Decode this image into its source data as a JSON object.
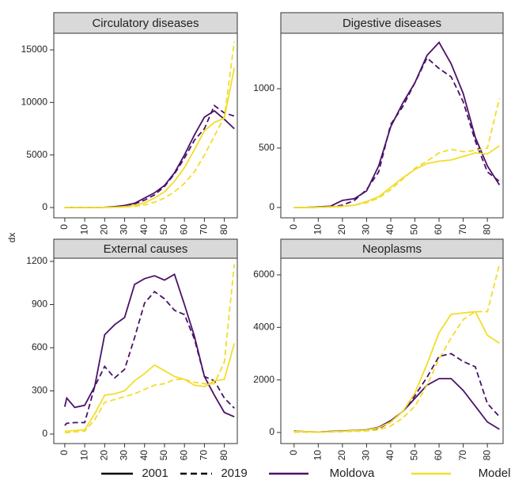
{
  "y_label": "dx",
  "legend": {
    "linetypes": [
      {
        "label": "2001",
        "dash": false
      },
      {
        "label": "2019",
        "dash": true
      }
    ],
    "colors": [
      {
        "label": "Moldova",
        "color": "#4a1269"
      },
      {
        "label": "Model",
        "color": "#f2dd2a"
      }
    ]
  },
  "chart_data": [
    {
      "type": "line",
      "title": "Circulatory diseases",
      "x": [
        0,
        1,
        5,
        10,
        15,
        20,
        25,
        30,
        35,
        40,
        45,
        50,
        55,
        60,
        65,
        70,
        75,
        80,
        85
      ],
      "xlim": [
        -5.5,
        86.5
      ],
      "xticks": [
        0,
        10,
        20,
        30,
        40,
        50,
        60,
        70,
        80
      ],
      "ylim": [
        -980,
        16580
      ],
      "yticks": [
        0,
        5000,
        10000,
        15000
      ],
      "series": [
        {
          "color": "#4a1269",
          "dash": false,
          "values": [
            0,
            0,
            0,
            0,
            0,
            20,
            80,
            200,
            400,
            900,
            1400,
            2100,
            3300,
            5000,
            6900,
            8600,
            9200,
            8400,
            7500
          ]
        },
        {
          "color": "#4a1269",
          "dash": true,
          "values": [
            0,
            0,
            0,
            0,
            0,
            10,
            50,
            150,
            350,
            700,
            1200,
            2000,
            3200,
            4700,
            6400,
            7500,
            9700,
            9000,
            8700
          ]
        },
        {
          "color": "#f2dd2a",
          "dash": false,
          "values": [
            0,
            0,
            0,
            0,
            0,
            10,
            30,
            80,
            200,
            450,
            900,
            1500,
            2500,
            3800,
            5500,
            7300,
            8100,
            8500,
            13300
          ]
        },
        {
          "color": "#f2dd2a",
          "dash": true,
          "values": [
            0,
            0,
            0,
            0,
            0,
            5,
            20,
            50,
            100,
            250,
            500,
            900,
            1500,
            2300,
            3400,
            5000,
            6800,
            8600,
            15800
          ]
        }
      ]
    },
    {
      "type": "line",
      "title": "Digestive diseases",
      "x": [
        0,
        1,
        5,
        10,
        15,
        20,
        25,
        30,
        35,
        40,
        45,
        50,
        55,
        60,
        65,
        70,
        75,
        80,
        85
      ],
      "xlim": [
        -5.5,
        86.5
      ],
      "xticks": [
        0,
        10,
        20,
        30,
        40,
        50,
        60,
        70,
        80
      ],
      "ylim": [
        -87,
        1467
      ],
      "yticks": [
        0,
        500,
        1000
      ],
      "series": [
        {
          "color": "#4a1269",
          "dash": false,
          "values": [
            0,
            0,
            0,
            5,
            10,
            60,
            75,
            140,
            350,
            680,
            880,
            1050,
            1280,
            1390,
            1210,
            960,
            590,
            350,
            190
          ]
        },
        {
          "color": "#4a1269",
          "dash": true,
          "values": [
            0,
            0,
            0,
            2,
            5,
            20,
            60,
            150,
            300,
            700,
            850,
            1050,
            1260,
            1170,
            1100,
            890,
            560,
            300,
            220
          ]
        },
        {
          "color": "#f2dd2a",
          "dash": false,
          "values": [
            0,
            0,
            0,
            2,
            5,
            10,
            20,
            50,
            90,
            170,
            250,
            320,
            370,
            390,
            400,
            430,
            460,
            450,
            520
          ]
        },
        {
          "color": "#f2dd2a",
          "dash": true,
          "values": [
            0,
            0,
            0,
            2,
            4,
            8,
            20,
            40,
            80,
            150,
            240,
            330,
            390,
            460,
            490,
            470,
            480,
            500,
            920
          ]
        }
      ]
    },
    {
      "type": "line",
      "title": "External causes",
      "x": [
        0,
        1,
        5,
        10,
        15,
        20,
        25,
        30,
        35,
        40,
        45,
        50,
        55,
        60,
        65,
        70,
        75,
        80,
        85
      ],
      "xlim": [
        -5.5,
        86.5
      ],
      "xticks": [
        0,
        10,
        20,
        30,
        40,
        50,
        60,
        70,
        80
      ],
      "ylim": [
        -66,
        1222
      ],
      "yticks": [
        0,
        300,
        600,
        900,
        1200
      ],
      "series": [
        {
          "color": "#4a1269",
          "dash": false,
          "values": [
            190,
            250,
            185,
            200,
            330,
            690,
            760,
            810,
            1040,
            1080,
            1100,
            1070,
            1110,
            900,
            680,
            400,
            270,
            150,
            120
          ]
        },
        {
          "color": "#4a1269",
          "dash": true,
          "values": [
            60,
            75,
            80,
            80,
            330,
            470,
            390,
            450,
            670,
            910,
            990,
            940,
            860,
            830,
            660,
            400,
            370,
            250,
            180
          ]
        },
        {
          "color": "#f2dd2a",
          "dash": false,
          "values": [
            20,
            20,
            25,
            30,
            140,
            270,
            280,
            300,
            370,
            420,
            480,
            440,
            400,
            380,
            340,
            330,
            370,
            380,
            630
          ]
        },
        {
          "color": "#f2dd2a",
          "dash": true,
          "values": [
            10,
            10,
            15,
            20,
            100,
            220,
            240,
            260,
            280,
            310,
            340,
            350,
            380,
            380,
            360,
            350,
            350,
            500,
            1180
          ]
        }
      ]
    },
    {
      "type": "line",
      "title": "Neoplasms",
      "x": [
        0,
        1,
        5,
        10,
        15,
        20,
        25,
        30,
        35,
        40,
        45,
        50,
        55,
        60,
        65,
        70,
        75,
        80,
        85
      ],
      "xlim": [
        -5.5,
        86.5
      ],
      "xticks": [
        0,
        10,
        20,
        30,
        40,
        50,
        60,
        70,
        80
      ],
      "ylim": [
        -422,
        6633
      ],
      "yticks": [
        0,
        2000,
        4000,
        6000
      ],
      "series": [
        {
          "color": "#4a1269",
          "dash": false,
          "values": [
            60,
            50,
            30,
            20,
            40,
            60,
            80,
            100,
            200,
            450,
            800,
            1300,
            1800,
            2050,
            2050,
            1600,
            1000,
            400,
            120
          ]
        },
        {
          "color": "#4a1269",
          "dash": true,
          "values": [
            30,
            30,
            20,
            15,
            30,
            40,
            60,
            80,
            150,
            400,
            800,
            1400,
            2100,
            2900,
            3000,
            2700,
            2500,
            1100,
            600
          ]
        },
        {
          "color": "#f2dd2a",
          "dash": false,
          "values": [
            40,
            40,
            30,
            20,
            30,
            50,
            70,
            90,
            180,
            400,
            800,
            1500,
            2600,
            3800,
            4500,
            4550,
            4600,
            3700,
            3400
          ]
        },
        {
          "color": "#f2dd2a",
          "dash": true,
          "values": [
            10,
            10,
            10,
            10,
            20,
            30,
            40,
            60,
            100,
            250,
            550,
            1000,
            1800,
            2800,
            3600,
            4300,
            4600,
            4600,
            6400
          ]
        }
      ]
    }
  ]
}
